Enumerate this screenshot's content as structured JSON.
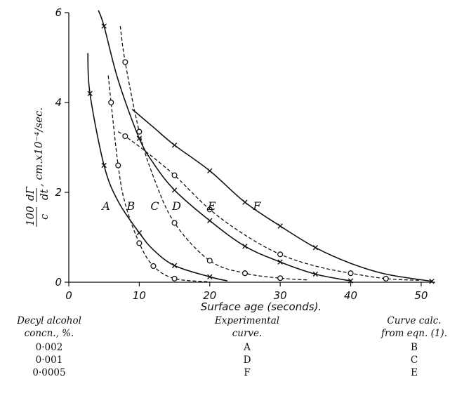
{
  "chart_data": {
    "type": "line",
    "title": "",
    "xlabel": "Surface age (seconds).",
    "ylabel_parts": {
      "frac_num": "100",
      "frac_den": "c",
      "dgamma": "dΓ",
      "dt": "dt",
      "units": ", cm.x10⁻⁴/sec."
    },
    "xlim": [
      0,
      52
    ],
    "ylim": [
      0,
      6
    ],
    "x_ticks": [
      0,
      10,
      20,
      30,
      40,
      50
    ],
    "y_ticks": [
      0,
      2,
      4,
      6
    ],
    "grid": false,
    "legend": "none",
    "series": [
      {
        "name": "A",
        "style": "solid",
        "marker": "x",
        "points": [
          [
            3,
            4.2
          ],
          [
            5,
            2.6
          ],
          [
            10,
            1.1
          ],
          [
            15,
            0.37
          ],
          [
            20,
            0.12
          ]
        ],
        "curve": [
          [
            2.7,
            5.1
          ],
          [
            3,
            4.2
          ],
          [
            5,
            2.6
          ],
          [
            7,
            1.8
          ],
          [
            10,
            1.1
          ],
          [
            12,
            0.72
          ],
          [
            15,
            0.37
          ],
          [
            20,
            0.12
          ],
          [
            22.5,
            0.03
          ]
        ]
      },
      {
        "name": "B",
        "style": "dashed",
        "marker": "o",
        "points": [
          [
            6,
            4.0
          ],
          [
            7,
            2.6
          ],
          [
            10,
            0.87
          ],
          [
            12,
            0.36
          ],
          [
            15,
            0.08
          ]
        ],
        "curve": [
          [
            5.6,
            4.6
          ],
          [
            6,
            4.0
          ],
          [
            7,
            2.6
          ],
          [
            8,
            1.75
          ],
          [
            10,
            0.87
          ],
          [
            12,
            0.36
          ],
          [
            15,
            0.08
          ],
          [
            20,
            0.01
          ]
        ]
      },
      {
        "name": "C",
        "style": "dashed",
        "marker": "o",
        "points": [
          [
            8,
            4.9
          ],
          [
            10,
            3.35
          ],
          [
            15,
            1.32
          ],
          [
            20,
            0.48
          ],
          [
            25,
            0.2
          ],
          [
            30,
            0.09
          ]
        ],
        "curve": [
          [
            7.3,
            5.7
          ],
          [
            8,
            4.9
          ],
          [
            10,
            3.35
          ],
          [
            12,
            2.35
          ],
          [
            15,
            1.32
          ],
          [
            20,
            0.48
          ],
          [
            25,
            0.2
          ],
          [
            30,
            0.09
          ],
          [
            34,
            0.05
          ]
        ]
      },
      {
        "name": "D",
        "style": "solid",
        "marker": "x",
        "points": [
          [
            5,
            5.7
          ],
          [
            10,
            3.2
          ],
          [
            15,
            2.05
          ],
          [
            20,
            1.37
          ],
          [
            25,
            0.8
          ],
          [
            30,
            0.45
          ],
          [
            35,
            0.18
          ],
          [
            40,
            0.03
          ]
        ],
        "curve": [
          [
            4.2,
            6.05
          ],
          [
            5,
            5.7
          ],
          [
            7,
            4.5
          ],
          [
            10,
            3.2
          ],
          [
            12,
            2.65
          ],
          [
            15,
            2.05
          ],
          [
            20,
            1.37
          ],
          [
            25,
            0.8
          ],
          [
            30,
            0.45
          ],
          [
            35,
            0.18
          ],
          [
            40,
            0.03
          ]
        ]
      },
      {
        "name": "E",
        "style": "dashed",
        "marker": "o",
        "points": [
          [
            8,
            3.25
          ],
          [
            15,
            2.38
          ],
          [
            20,
            1.62
          ],
          [
            30,
            0.62
          ],
          [
            40,
            0.2
          ],
          [
            45,
            0.08
          ]
        ],
        "curve": [
          [
            7,
            3.35
          ],
          [
            8,
            3.25
          ],
          [
            11,
            2.9
          ],
          [
            15,
            2.38
          ],
          [
            20,
            1.62
          ],
          [
            25,
            1.05
          ],
          [
            30,
            0.62
          ],
          [
            35,
            0.36
          ],
          [
            40,
            0.2
          ],
          [
            45,
            0.08
          ],
          [
            50,
            0.04
          ]
        ]
      },
      {
        "name": "F",
        "style": "solid",
        "marker": "x",
        "points": [
          [
            15,
            3.05
          ],
          [
            20,
            2.48
          ],
          [
            25,
            1.78
          ],
          [
            30,
            1.25
          ],
          [
            35,
            0.77
          ],
          [
            51.5,
            0.02
          ]
        ],
        "curve": [
          [
            9,
            3.85
          ],
          [
            12,
            3.45
          ],
          [
            15,
            3.05
          ],
          [
            20,
            2.48
          ],
          [
            25,
            1.78
          ],
          [
            30,
            1.25
          ],
          [
            35,
            0.77
          ],
          [
            40,
            0.42
          ],
          [
            45,
            0.18
          ],
          [
            51.5,
            0.02
          ]
        ]
      }
    ],
    "curve_labels": [
      {
        "text": "A",
        "x": 5.3,
        "y": 1.7
      },
      {
        "text": "B",
        "x": 8.8,
        "y": 1.7
      },
      {
        "text": "C",
        "x": 12.2,
        "y": 1.7
      },
      {
        "text": "D",
        "x": 15.3,
        "y": 1.7
      },
      {
        "text": "E",
        "x": 20.3,
        "y": 1.7
      },
      {
        "text": "F",
        "x": 26.7,
        "y": 1.7
      }
    ]
  },
  "table": {
    "headers": [
      [
        "Decyl alcohol",
        "concn., %."
      ],
      [
        "Experimental",
        "curve."
      ],
      [
        "Curve calc.",
        "from eqn. (1)."
      ]
    ],
    "rows": [
      [
        "0·002",
        "A",
        "B"
      ],
      [
        "0·001",
        "D",
        "C"
      ],
      [
        "0·0005",
        "F",
        "E"
      ]
    ]
  }
}
